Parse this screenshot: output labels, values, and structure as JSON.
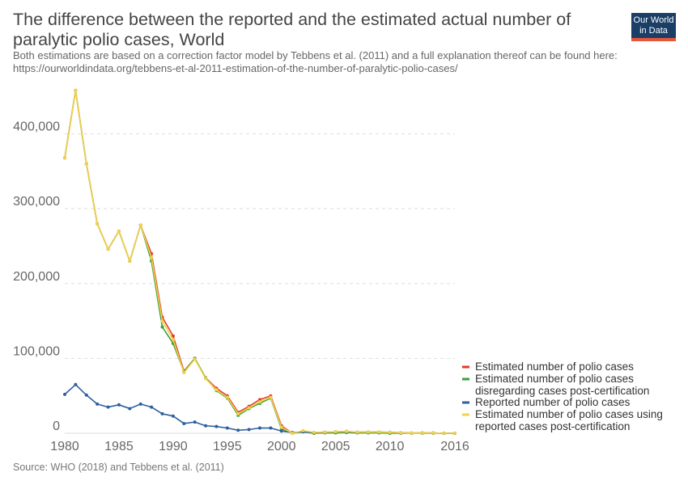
{
  "header": {
    "title": "The difference between the reported and the estimated actual number of paralytic polio cases, World",
    "subtitle": "Both estimations are based on a correction factor model by Tebbens et al. (2011) and a full explanation thereof can be found here: https://ourworldindata.org/tebbens-et-al-2011-estimation-of-the-number-of-paralytic-polio-cases/",
    "logo_line1": "Our World",
    "logo_line2": "in Data"
  },
  "footer": {
    "source": "Source: WHO (2018) and Tebbens et al. (2011)"
  },
  "colors": {
    "estimated": "#e63a2e",
    "disregarding": "#3aa13a",
    "reported": "#2f5f9e",
    "using_reported": "#f2d24a",
    "logo_bg": "#1a3e66",
    "logo_bar": "#e5563b"
  },
  "chart_data": {
    "type": "line",
    "title": "The difference between the reported and the estimated actual number of paralytic polio cases, World",
    "xlabel": "",
    "ylabel": "",
    "xlim": [
      1980,
      2016
    ],
    "ylim": [
      0,
      460000
    ],
    "x_ticks": [
      "1980",
      "1985",
      "1990",
      "1995",
      "2000",
      "2005",
      "2010",
      "2016"
    ],
    "y_ticks": [
      "0",
      "100,000",
      "200,000",
      "300,000",
      "400,000"
    ],
    "grid": "horizontal dashed",
    "legend_placement": "right",
    "x": [
      1980,
      1981,
      1982,
      1983,
      1984,
      1985,
      1986,
      1987,
      1988,
      1989,
      1990,
      1991,
      1992,
      1993,
      1994,
      1995,
      1996,
      1997,
      1998,
      1999,
      2000,
      2001,
      2002,
      2003,
      2004,
      2005,
      2006,
      2007,
      2008,
      2009,
      2010,
      2011,
      2012,
      2013,
      2014,
      2015,
      2016
    ],
    "series": [
      {
        "name": "Estimated number of polio cases",
        "color_key": "estimated",
        "values": [
          368000,
          458000,
          360000,
          280000,
          246000,
          270000,
          230000,
          278000,
          240000,
          155000,
          130000,
          83000,
          100000,
          74000,
          60000,
          50000,
          28000,
          36000,
          45000,
          50000,
          10000,
          0,
          3000,
          1000,
          1500,
          2000,
          2500,
          1500,
          1500,
          1500,
          1000,
          700,
          300,
          500,
          400,
          100,
          100
        ]
      },
      {
        "name": "Estimated number of polio cases disregarding cases post-certification",
        "color_key": "disregarding",
        "values": [
          368000,
          458000,
          360000,
          280000,
          246000,
          270000,
          230000,
          278000,
          230000,
          142000,
          120000,
          82000,
          100000,
          74000,
          57000,
          47000,
          24000,
          33000,
          40000,
          47000,
          6000,
          0,
          2000,
          0,
          500,
          500,
          1000,
          500,
          500,
          500,
          0,
          0,
          0,
          0,
          0,
          0,
          0
        ]
      },
      {
        "name": "Reported number of polio cases",
        "color_key": "reported",
        "values": [
          52000,
          65000,
          51000,
          39000,
          35000,
          38000,
          33000,
          39000,
          35000,
          26000,
          23000,
          13000,
          15000,
          10000,
          9000,
          7000,
          4000,
          5000,
          7000,
          7000,
          3000,
          1000,
          2000,
          800,
          1200,
          1900,
          2000,
          1300,
          1600,
          1600,
          1300,
          700,
          200,
          400,
          350,
          75,
          40
        ]
      },
      {
        "name": "Estimated number of polio cases using reported cases post-certification",
        "color_key": "using_reported",
        "values": [
          368000,
          458000,
          360000,
          280000,
          246000,
          270000,
          230000,
          278000,
          235000,
          150000,
          125000,
          81000,
          99000,
          73000,
          58000,
          48000,
          26000,
          34000,
          42000,
          48000,
          8000,
          0,
          3500,
          1200,
          1500,
          2000,
          2400,
          1500,
          1600,
          1600,
          1200,
          700,
          250,
          450,
          400,
          80,
          80
        ]
      }
    ]
  }
}
